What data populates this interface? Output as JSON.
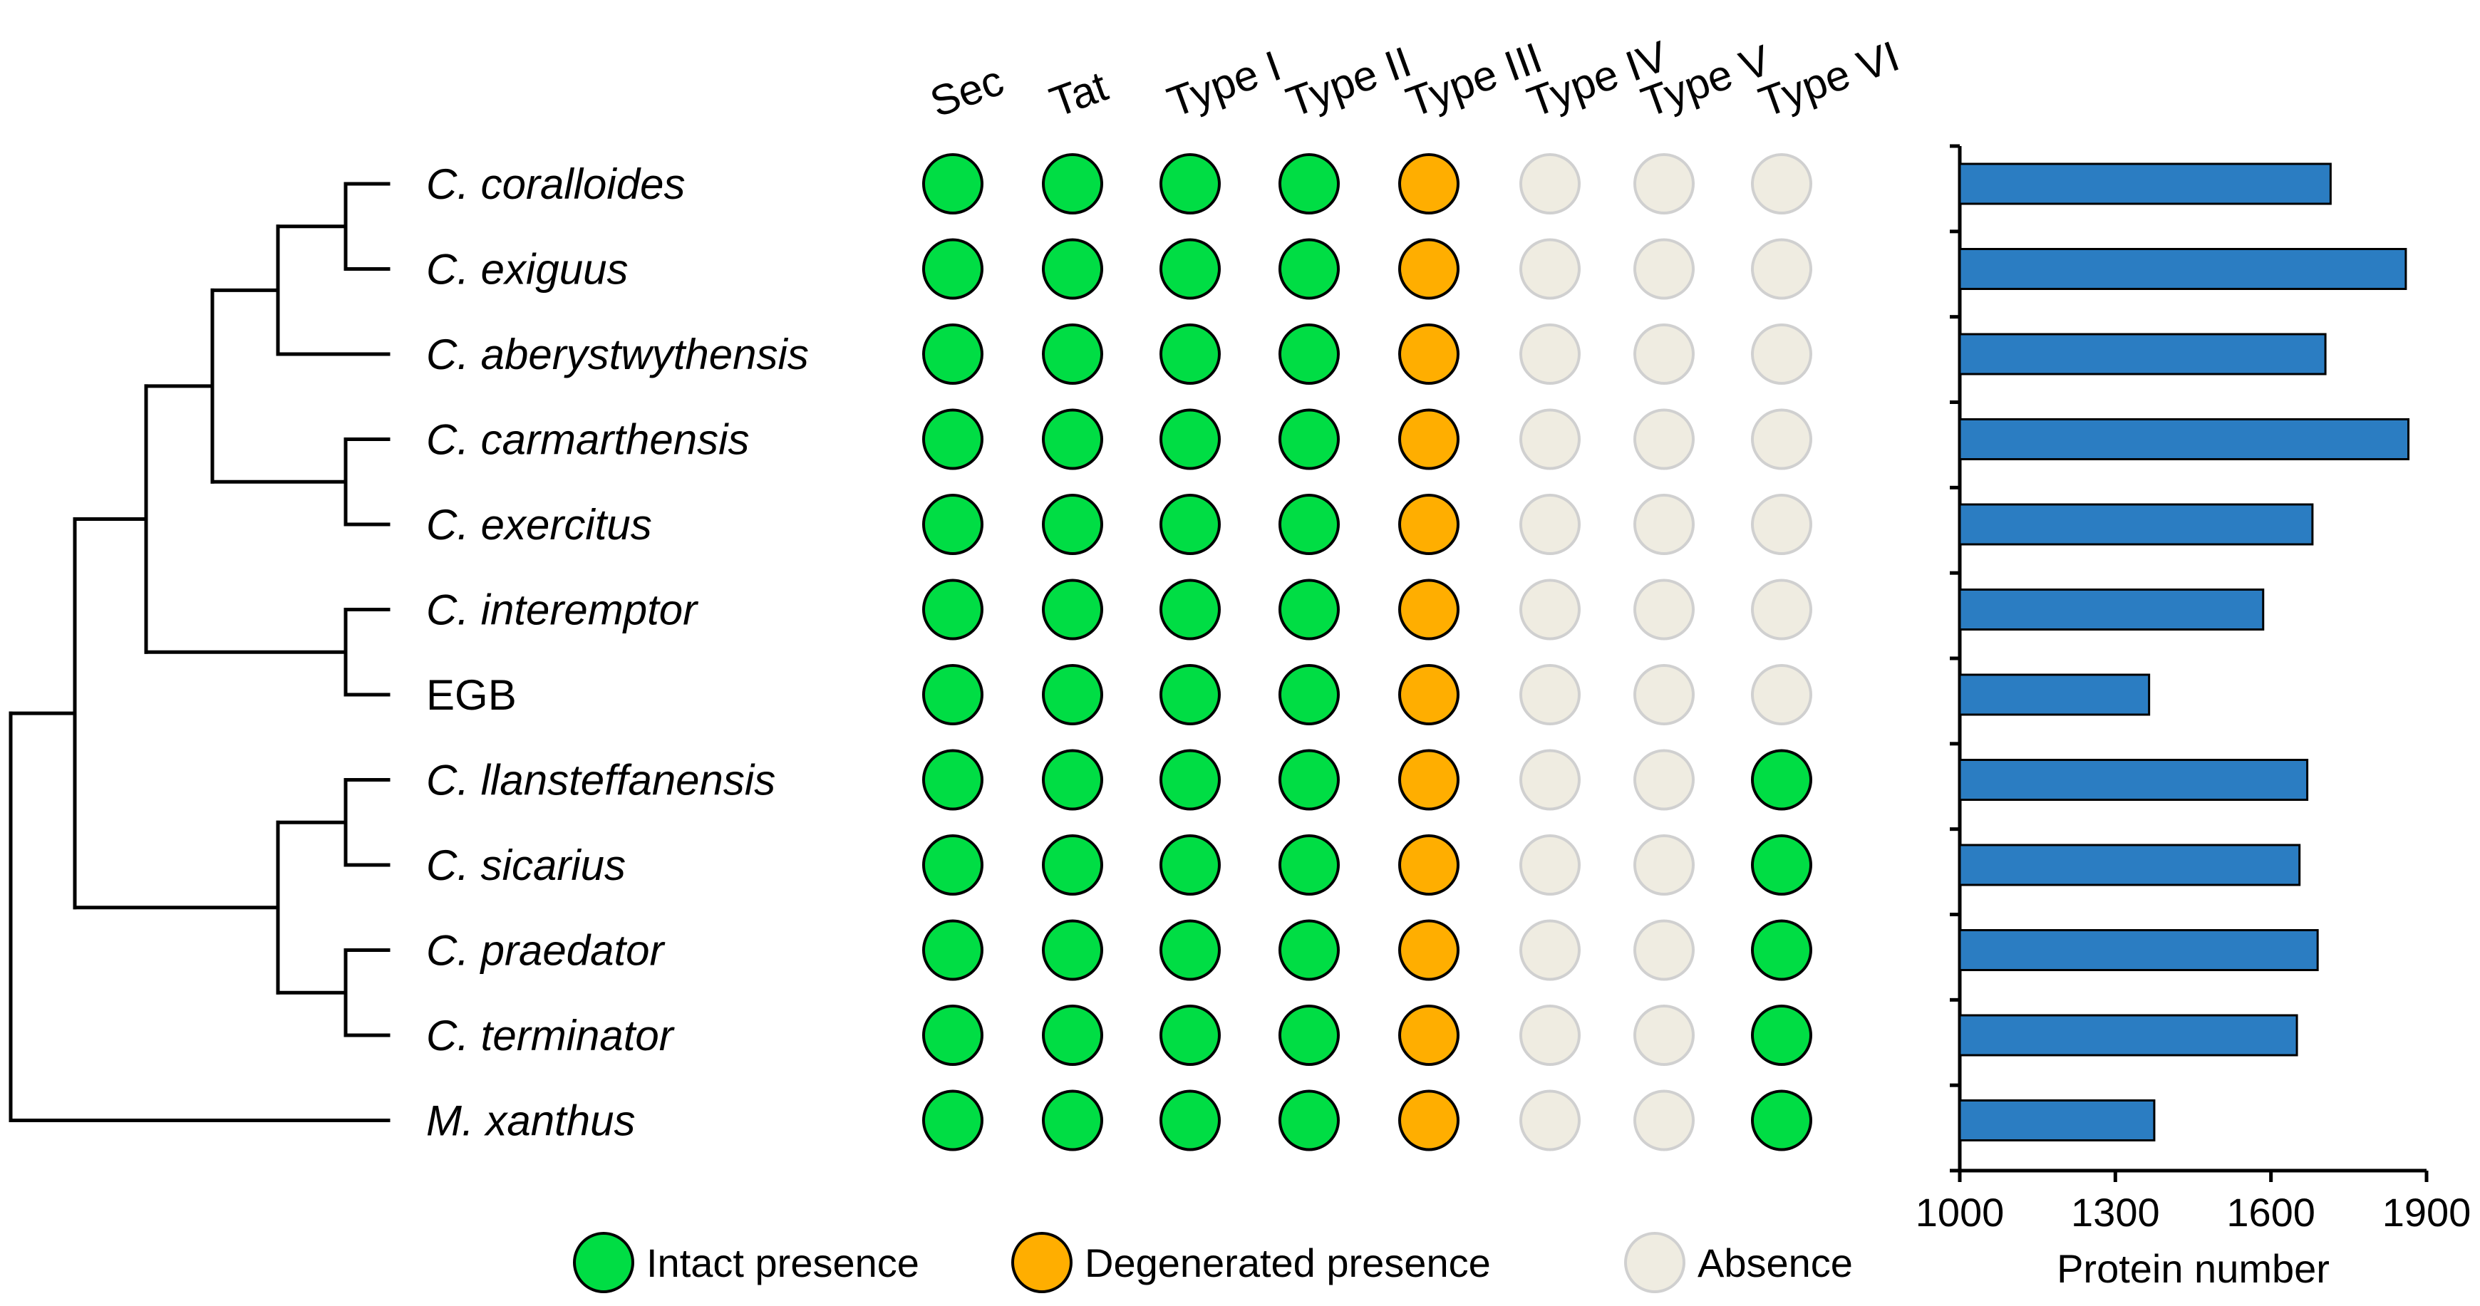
{
  "colors": {
    "intact": "#00DD44",
    "degenerated": "#FFAE00",
    "absence_fill": "#EFECE1",
    "absence_stroke": "#D0D0D0",
    "bar": "#2B7DC2",
    "line": "#000000"
  },
  "columns": [
    "Sec",
    "Tat",
    "Type I",
    "Type II",
    "Type III",
    "Type IV",
    "Type V",
    "Type VI"
  ],
  "taxa": [
    {
      "name": "C. coralloides",
      "italic": true
    },
    {
      "name": "C. exiguus",
      "italic": true
    },
    {
      "name": "C. aberystwythensis",
      "italic": true
    },
    {
      "name": "C. carmarthensis",
      "italic": true
    },
    {
      "name": "C. exercitus",
      "italic": true
    },
    {
      "name": "C. interemptor",
      "italic": true
    },
    {
      "name": "EGB",
      "italic": false
    },
    {
      "name": "C. llansteffanensis",
      "italic": true
    },
    {
      "name": "C. sicarius",
      "italic": true
    },
    {
      "name": "C. praedator",
      "italic": true
    },
    {
      "name": "C. terminator",
      "italic": true
    },
    {
      "name": "M. xanthus",
      "italic": true
    }
  ],
  "presence": [
    [
      "intact",
      "intact",
      "intact",
      "intact",
      "degenerated",
      "absence",
      "absence",
      "absence"
    ],
    [
      "intact",
      "intact",
      "intact",
      "intact",
      "degenerated",
      "absence",
      "absence",
      "absence"
    ],
    [
      "intact",
      "intact",
      "intact",
      "intact",
      "degenerated",
      "absence",
      "absence",
      "absence"
    ],
    [
      "intact",
      "intact",
      "intact",
      "intact",
      "degenerated",
      "absence",
      "absence",
      "absence"
    ],
    [
      "intact",
      "intact",
      "intact",
      "intact",
      "degenerated",
      "absence",
      "absence",
      "absence"
    ],
    [
      "intact",
      "intact",
      "intact",
      "intact",
      "degenerated",
      "absence",
      "absence",
      "absence"
    ],
    [
      "intact",
      "intact",
      "intact",
      "intact",
      "degenerated",
      "absence",
      "absence",
      "absence"
    ],
    [
      "intact",
      "intact",
      "intact",
      "intact",
      "degenerated",
      "absence",
      "absence",
      "intact"
    ],
    [
      "intact",
      "intact",
      "intact",
      "intact",
      "degenerated",
      "absence",
      "absence",
      "intact"
    ],
    [
      "intact",
      "intact",
      "intact",
      "intact",
      "degenerated",
      "absence",
      "absence",
      "intact"
    ],
    [
      "intact",
      "intact",
      "intact",
      "intact",
      "degenerated",
      "absence",
      "absence",
      "intact"
    ],
    [
      "intact",
      "intact",
      "intact",
      "intact",
      "degenerated",
      "absence",
      "absence",
      "intact"
    ]
  ],
  "legend": [
    {
      "key": "intact",
      "label": "Intact presence"
    },
    {
      "key": "degenerated",
      "label": "Degenerated presence"
    },
    {
      "key": "absence",
      "label": "Absence"
    }
  ],
  "tree": {
    "children": [
      {
        "children": [
          {
            "children": [
              {
                "children": [
                  {
                    "children": [
                      {
                        "leaf": 0
                      },
                      {
                        "leaf": 1
                      }
                    ]
                  },
                  {
                    "leaf": 2
                  }
                ]
              },
              {
                "children": [
                  {
                    "leaf": 3
                  },
                  {
                    "leaf": 4
                  }
                ]
              }
            ]
          },
          {
            "children": [
              {
                "leaf": 5
              },
              {
                "leaf": 6
              }
            ]
          }
        ]
      },
      {
        "children": [
          {
            "children": [
              {
                "leaf": 7
              },
              {
                "leaf": 8
              }
            ]
          },
          {
            "children": [
              {
                "leaf": 9
              },
              {
                "leaf": 10
              }
            ]
          }
        ]
      }
    ],
    "outgroup": {
      "leaf": 11
    }
  },
  "chart_data": {
    "type": "bar",
    "orientation": "horizontal",
    "categories": [
      "C. coralloides",
      "C. exiguus",
      "C. aberystwythensis",
      "C. carmarthensis",
      "C. exercitus",
      "C. interemptor",
      "EGB",
      "C. llansteffanensis",
      "C. sicarius",
      "C. praedator",
      "C. terminator",
      "M. xanthus"
    ],
    "values": [
      1715,
      1860,
      1705,
      1865,
      1680,
      1585,
      1365,
      1670,
      1655,
      1690,
      1650,
      1375
    ],
    "xlabel": "Protein number",
    "xlim": [
      1000,
      1900
    ],
    "xticks": [
      1000,
      1300,
      1600,
      1900
    ]
  }
}
